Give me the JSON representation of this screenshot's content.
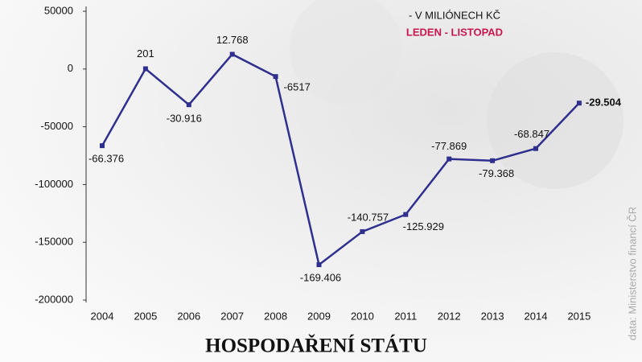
{
  "chart_data": {
    "type": "line",
    "title": "HOSPODAŘENÍ STÁTU",
    "annotations": [
      "- V MILIÓNECH KČ",
      "LEDEN - LISTOPAD"
    ],
    "source": "data: Ministerstvo financí ČR",
    "categories": [
      "2004",
      "2005",
      "2006",
      "2007",
      "2008",
      "2009",
      "2010",
      "2011",
      "2012",
      "2013",
      "2014",
      "2015"
    ],
    "series": [
      {
        "name": "Hospodaření státu",
        "color": "#2f2f8f",
        "values": [
          -66376,
          201,
          -30916,
          12768,
          -6517,
          -169406,
          -140757,
          -125929,
          -77869,
          -79368,
          -68847,
          -29504
        ],
        "value_labels": [
          "-66.376",
          "201",
          "-30.916",
          "12.768",
          "-6517",
          "-169.406",
          "-140.757",
          "-125.929",
          "-77.869",
          "-79.368",
          "-68.847",
          "-29.504"
        ]
      }
    ],
    "ylim": [
      -200000,
      50000
    ],
    "yticks": [
      -200000,
      -150000,
      -100000,
      -50000,
      0,
      50000
    ],
    "grid": false
  }
}
